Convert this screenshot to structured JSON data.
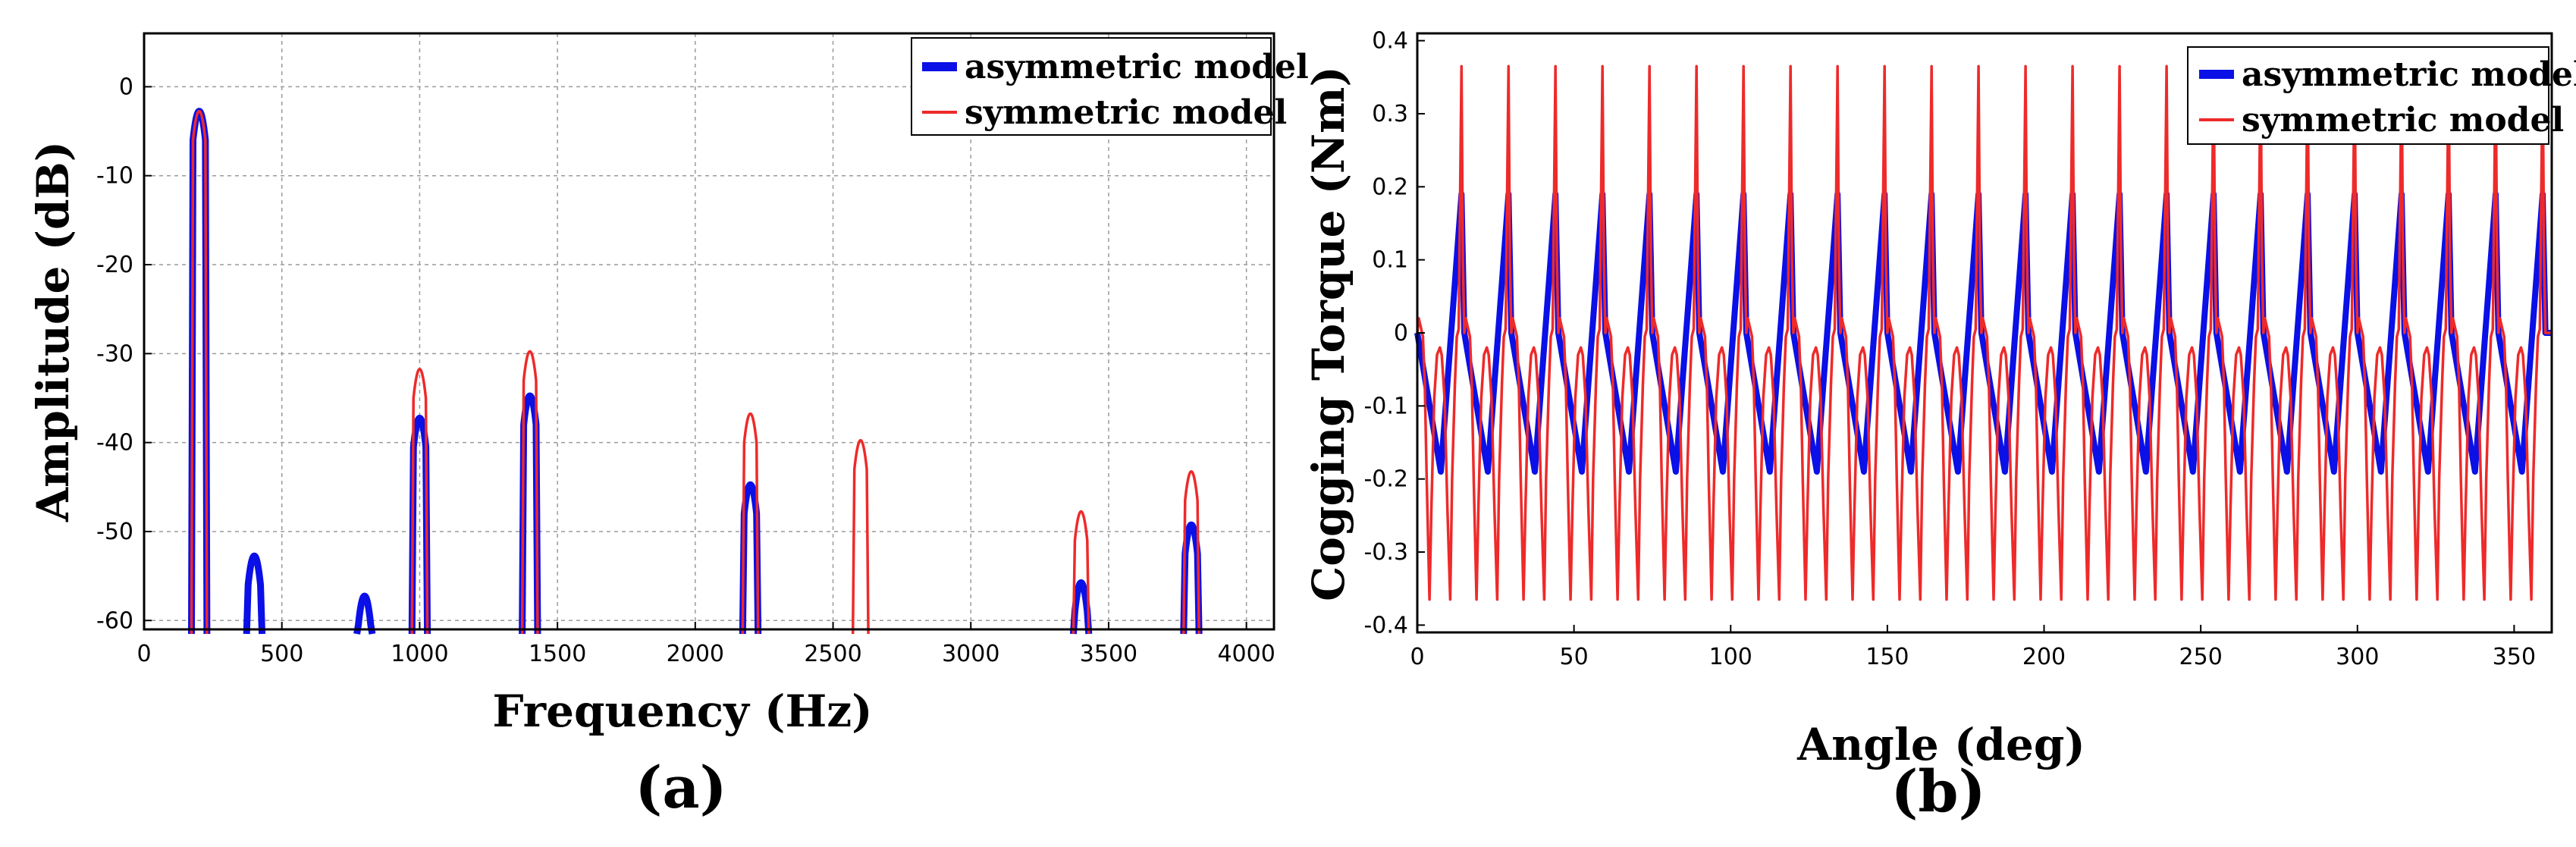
{
  "colors": {
    "asymmetric": "#0a10e6",
    "symmetric": "#ee2a2a",
    "grid": "#9a9a9a",
    "axis": "#000000"
  },
  "chart_data": [
    {
      "id": "a",
      "panel_label": "(a)",
      "type": "line",
      "xlabel": "Frequency (Hz)",
      "ylabel": "Amplitude (dB)",
      "xlim": [
        0,
        4100
      ],
      "ylim": [
        -61,
        6
      ],
      "xticks": [
        0,
        500,
        1000,
        1500,
        2000,
        2500,
        3000,
        3500,
        4000
      ],
      "yticks": [
        0,
        -10,
        -20,
        -30,
        -40,
        -50,
        -60
      ],
      "grid": true,
      "legend_position": "top-right",
      "series": [
        {
          "name": "asymmetric model",
          "color": "#0a10e6",
          "peaks": [
            {
              "x": 200,
              "y": 0
            },
            {
              "x": 400,
              "y": -50
            },
            {
              "x": 800,
              "y": -54.5
            },
            {
              "x": 1000,
              "y": -34.5
            },
            {
              "x": 1400,
              "y": -32
            },
            {
              "x": 2200,
              "y": -42
            },
            {
              "x": 3400,
              "y": -53
            },
            {
              "x": 3800,
              "y": -46.5
            }
          ]
        },
        {
          "name": "symmetric model",
          "color": "#ee2a2a",
          "peaks": [
            {
              "x": 200,
              "y": 0
            },
            {
              "x": 1000,
              "y": -29
            },
            {
              "x": 1400,
              "y": -27
            },
            {
              "x": 2200,
              "y": -34
            },
            {
              "x": 2600,
              "y": -37
            },
            {
              "x": 3400,
              "y": -45
            },
            {
              "x": 3800,
              "y": -40.5
            }
          ]
        }
      ]
    },
    {
      "id": "b",
      "panel_label": "(b)",
      "type": "line",
      "xlabel": "Angle (deg)",
      "ylabel": "Cogging Torque (Nm)",
      "xlim": [
        0,
        362
      ],
      "ylim": [
        -0.41,
        0.41
      ],
      "xticks": [
        0,
        50,
        100,
        150,
        200,
        250,
        300,
        350
      ],
      "yticks": [
        0.4,
        0.3,
        0.2,
        0.1,
        0,
        -0.1,
        -0.2,
        -0.3,
        -0.4
      ],
      "ytick_labels": [
        "0.4",
        "0.3",
        "0.2",
        "0.1",
        "0",
        "-0.1",
        "-0.2",
        "-0.3",
        "-0.4"
      ],
      "grid": false,
      "legend_position": "top-right",
      "period_deg": 15,
      "series": [
        {
          "name": "asymmetric model",
          "color": "#0a10e6",
          "peak": 0.19,
          "shape": [
            [
              0,
              0
            ],
            [
              0.5,
              -0.19
            ],
            [
              0.94,
              0.19
            ],
            [
              1,
              0
            ]
          ]
        },
        {
          "name": "symmetric model",
          "color": "#ee2a2a",
          "peak": 0.365,
          "shape": [
            [
              0,
              0
            ],
            [
              0.03,
              0.02
            ],
            [
              0.12,
              -0.005
            ],
            [
              0.16,
              -0.07
            ],
            [
              0.2,
              -0.2
            ],
            [
              0.26,
              -0.365
            ],
            [
              0.3,
              -0.24
            ],
            [
              0.36,
              -0.09
            ],
            [
              0.42,
              -0.03
            ],
            [
              0.48,
              -0.02
            ],
            [
              0.52,
              -0.03
            ],
            [
              0.58,
              -0.09
            ],
            [
              0.64,
              -0.24
            ],
            [
              0.7,
              -0.365
            ],
            [
              0.74,
              -0.2
            ],
            [
              0.8,
              -0.07
            ],
            [
              0.84,
              -0.005
            ],
            [
              0.88,
              0.005
            ],
            [
              0.94,
              0.365
            ],
            [
              0.97,
              0.1
            ],
            [
              1,
              0
            ]
          ]
        }
      ]
    }
  ]
}
